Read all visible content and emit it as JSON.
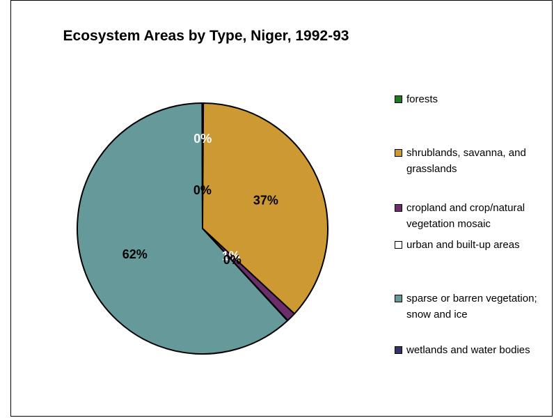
{
  "chart_data": {
    "type": "pie",
    "title": "Ecosystem Areas by Type, Niger, 1992-93",
    "categories": [
      "forests",
      "shrublands, savanna, and grasslands",
      "cropland and crop/natural vegetation mosaic",
      "urban and built-up areas",
      "sparse or barren vegetation; snow and ice",
      "wetlands and water bodies"
    ],
    "values": [
      0.1,
      36.8,
      1.2,
      0.05,
      61.8,
      0.05
    ],
    "data_labels": [
      "0%",
      "37%",
      "1%",
      "0%",
      "62%",
      "0%"
    ],
    "colors": [
      "#1f7a1f",
      "#cc9933",
      "#6b2d6b",
      "#ffffff",
      "#669999",
      "#333366"
    ],
    "label_colors": [
      "#ffffff",
      "#000000",
      "#ffffff",
      "#000000",
      "#000000",
      "#000000"
    ],
    "legend": "right"
  }
}
